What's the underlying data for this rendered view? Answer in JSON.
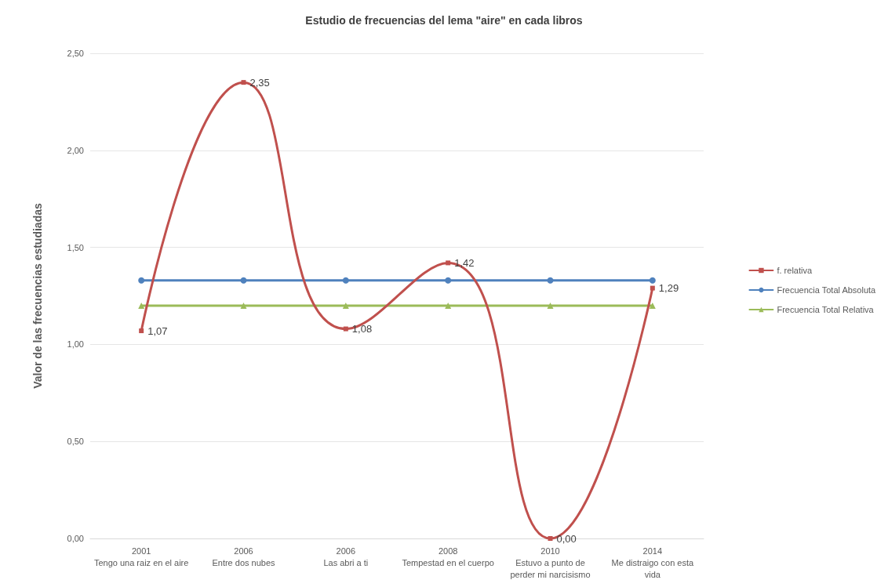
{
  "chart_data": {
    "type": "line",
    "title": "Estudio de frecuencias del lema \"aire\" en cada libros",
    "ylabel": "Valor de las frecuencias estudiadas",
    "categories": [
      "2001\nTengo una raiz en el aire",
      "2006\nEntre dos nubes",
      "2006\nLas abri a ti",
      "2008\nTempestad en el cuerpo",
      "2010\nEstuvo a punto de\nperder mi narcisismo",
      "2014\nMe distraigo con esta\nvida"
    ],
    "series": [
      {
        "name": "f. relativa",
        "color": "#c0504d",
        "marker": "square",
        "values": [
          1.07,
          2.35,
          1.08,
          1.42,
          0.0,
          1.29
        ],
        "value_labels": [
          "1,07",
          "2,35",
          "1,08",
          "1,42",
          "0,00",
          "1,29"
        ]
      },
      {
        "name": "Frecuencia Total Absoluta",
        "color": "#4f81bd",
        "marker": "circle",
        "values": [
          1.33,
          1.33,
          1.33,
          1.33,
          1.33,
          1.33
        ]
      },
      {
        "name": "Frecuencia Total Relativa",
        "color": "#9bbb59",
        "marker": "triangle",
        "values": [
          1.2,
          1.2,
          1.2,
          1.2,
          1.2,
          1.2
        ]
      }
    ],
    "ylim": [
      0,
      2.5
    ],
    "yticks": [
      {
        "value": 0,
        "label": "0,00"
      },
      {
        "value": 0.5,
        "label": "0,50"
      },
      {
        "value": 1,
        "label": "1,00"
      },
      {
        "value": 1.5,
        "label": "1,50"
      },
      {
        "value": 2,
        "label": "2,00"
      },
      {
        "value": 2.5,
        "label": "2,50"
      }
    ],
    "grid": "y",
    "legend": "right",
    "line_style": "solid"
  }
}
